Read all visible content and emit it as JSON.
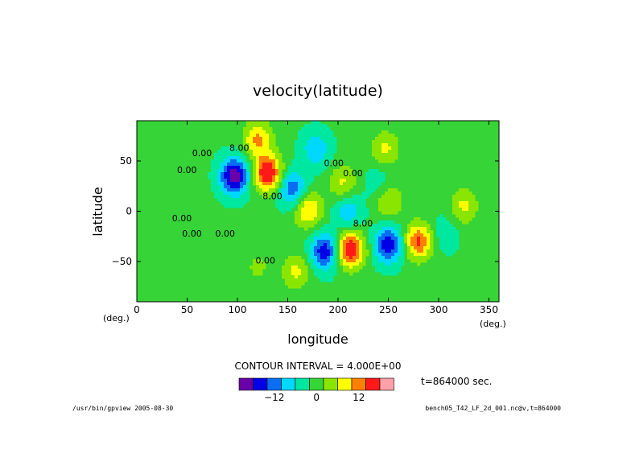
{
  "chart_data": {
    "type": "heatmap",
    "title": "velocity(latitude)",
    "xlabel": "longitude",
    "ylabel": "latitude",
    "x_unit": "(deg.)",
    "y_unit": "(deg.)",
    "xlim": [
      0,
      360
    ],
    "ylim": [
      -90,
      90
    ],
    "x_ticks": [
      0,
      50,
      100,
      150,
      200,
      250,
      300,
      350
    ],
    "y_ticks": [
      50,
      0,
      -50
    ],
    "y_tick_labels": [
      "50",
      "0",
      "−50"
    ],
    "contour_interval_text": "CONTOUR INTERVAL = 4.000E+00",
    "contour_labels": [
      "0.00",
      "8.00",
      "0.00",
      "0.00",
      "0.00",
      "8.00",
      "0.00",
      "0.00",
      "0.00",
      "8.00",
      "0.00"
    ],
    "colorbar": {
      "levels": [
        -20,
        -16,
        -12,
        -8,
        -4,
        0,
        4,
        8,
        12,
        16,
        20
      ],
      "colors": [
        "#6a00a8",
        "#0000e6",
        "#0a6ef0",
        "#00d8ff",
        "#00e8a0",
        "#36d436",
        "#8ae600",
        "#ffff00",
        "#ff8000",
        "#ff1a1a",
        "#ffa0a8"
      ],
      "tick_values": [
        -12,
        0,
        12
      ],
      "tick_labels": [
        "−12",
        "0",
        "12"
      ]
    },
    "features": [
      {
        "type": "low",
        "x": 97,
        "y": 35,
        "peak": -20
      },
      {
        "type": "high",
        "x": 130,
        "y": 38,
        "peak": 20
      },
      {
        "type": "low",
        "x": 155,
        "y": 22,
        "peak": -12
      },
      {
        "type": "high",
        "x": 170,
        "y": 2,
        "peak": 12
      },
      {
        "type": "low",
        "x": 187,
        "y": -40,
        "peak": -16
      },
      {
        "type": "high",
        "x": 212,
        "y": -38,
        "peak": 20
      },
      {
        "type": "low",
        "x": 250,
        "y": -33,
        "peak": -16
      },
      {
        "type": "high",
        "x": 280,
        "y": -30,
        "peak": 16
      },
      {
        "type": "high",
        "x": 205,
        "y": 28,
        "peak": 8
      },
      {
        "type": "low",
        "x": 210,
        "y": 0,
        "peak": -8
      },
      {
        "type": "low",
        "x": 120,
        "y": 72,
        "peak": 12
      },
      {
        "type": "low",
        "x": 120,
        "y": -55,
        "peak": 4
      },
      {
        "type": "low",
        "x": 306,
        "y": -22,
        "peak": -4
      },
      {
        "type": "high",
        "x": 325,
        "y": 5,
        "peak": 8
      },
      {
        "type": "high",
        "x": 250,
        "y": 10,
        "peak": 8
      },
      {
        "type": "low",
        "x": 240,
        "y": 28,
        "peak": -4
      },
      {
        "type": "high",
        "x": 158,
        "y": -60,
        "peak": 8
      },
      {
        "type": "low",
        "x": 178,
        "y": 62,
        "peak": -8
      },
      {
        "type": "high",
        "x": 247,
        "y": 62,
        "peak": 8
      }
    ]
  },
  "footer": {
    "time_label": "t=864000 sec.",
    "left_note": "/usr/bin/gpview 2005-08-30",
    "right_note": "bench05_T42_LF_2d_001.nc@v,t=864000"
  }
}
